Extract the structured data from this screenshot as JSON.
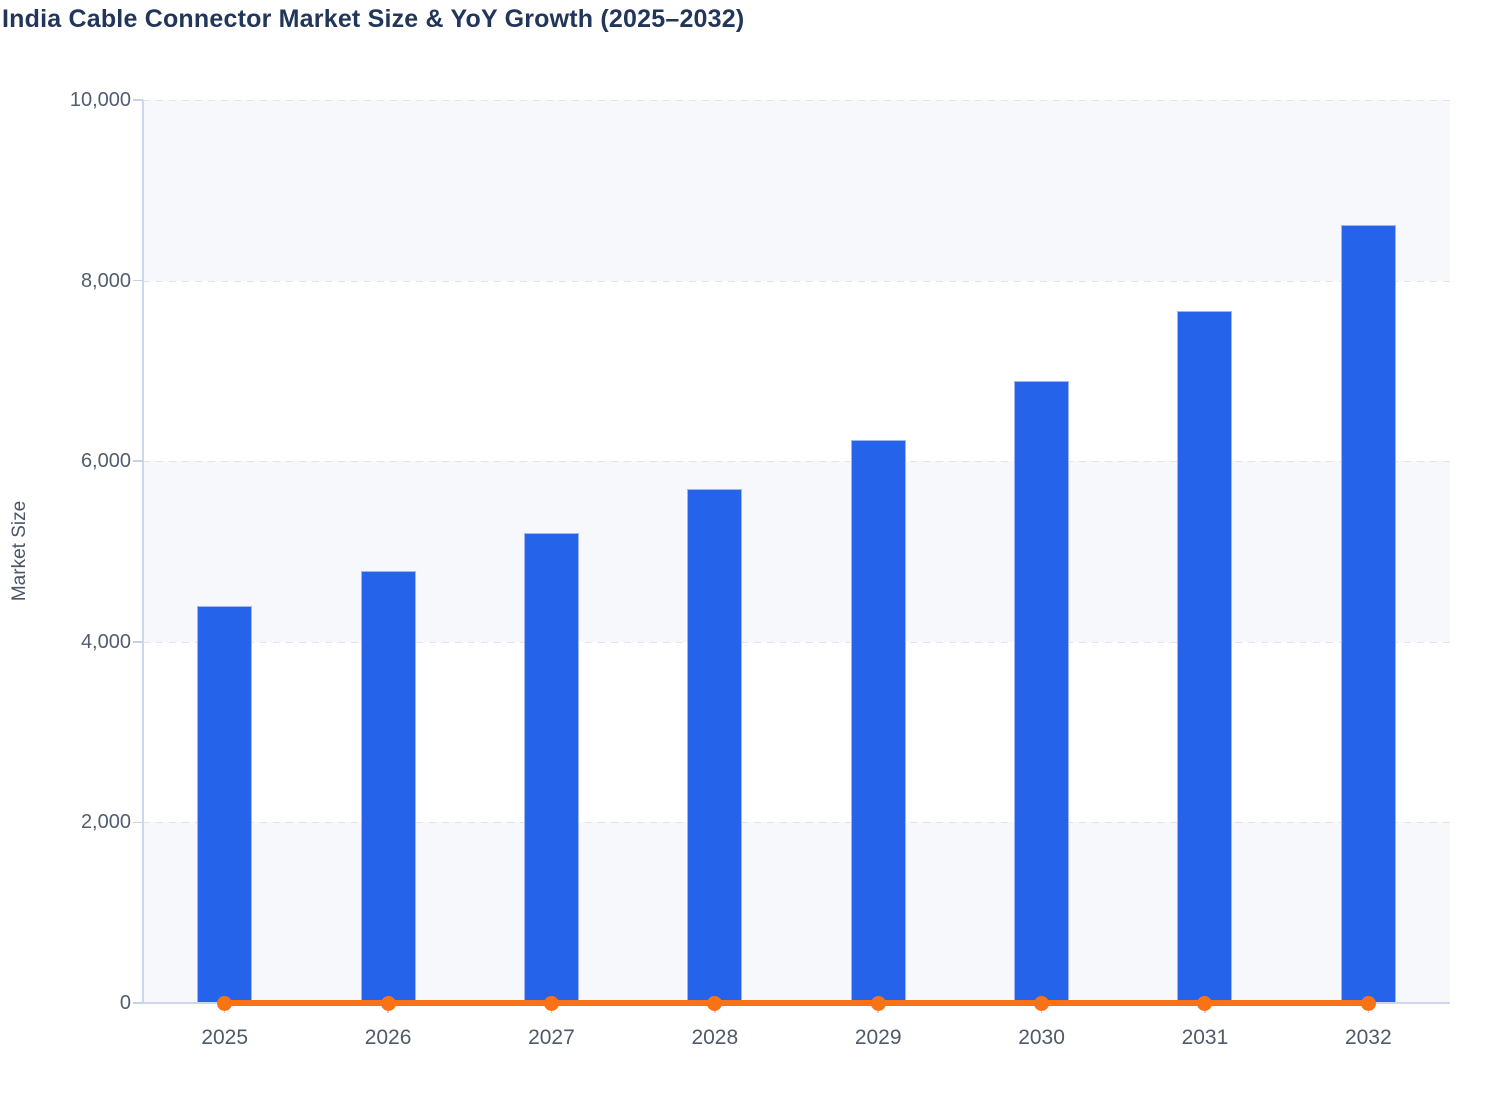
{
  "chart_data": {
    "type": "bar+line combo",
    "title": "India Cable Connector Market Size & YoY Growth (2025–2032)",
    "ylabel": "Market Size",
    "xlabel": "",
    "categories": [
      "2025",
      "2026",
      "2027",
      "2028",
      "2029",
      "2030",
      "2031",
      "2032"
    ],
    "series": [
      {
        "name": "Market Size",
        "type": "bar",
        "color": "#2563eb",
        "values": [
          4400,
          4780,
          5200,
          5690,
          6240,
          6890,
          7660,
          8620
        ]
      },
      {
        "name": "YoY Growth",
        "type": "line",
        "color": "#f97316",
        "values": [
          0,
          0,
          0,
          0,
          0,
          0,
          0,
          0
        ],
        "note": "line with round markers rendered flat along the zero baseline of the market-size axis"
      }
    ],
    "ylim": [
      0,
      10000
    ],
    "ytick_values": [
      0,
      2000,
      4000,
      6000,
      8000,
      10000
    ],
    "ytick_labels": [
      "0",
      "2,000",
      "4,000",
      "6,000",
      "8,000",
      "10,000"
    ],
    "grid": "dashed horizontal gridlines",
    "legend": "none",
    "plot_bands": "alternating light horizontal rows (8000–10000, 4000–6000, 0–2000)"
  },
  "colors": {
    "bar": "#2563eb",
    "bar_border": "#9fb6f0",
    "line": "#f97316",
    "title_text": "#22365a",
    "axis_text": "#525d6d",
    "axis_line": "#ccd6ee",
    "gridline": "#e2e4e9",
    "band": "#f7f8fb",
    "background": "#ffffff"
  }
}
